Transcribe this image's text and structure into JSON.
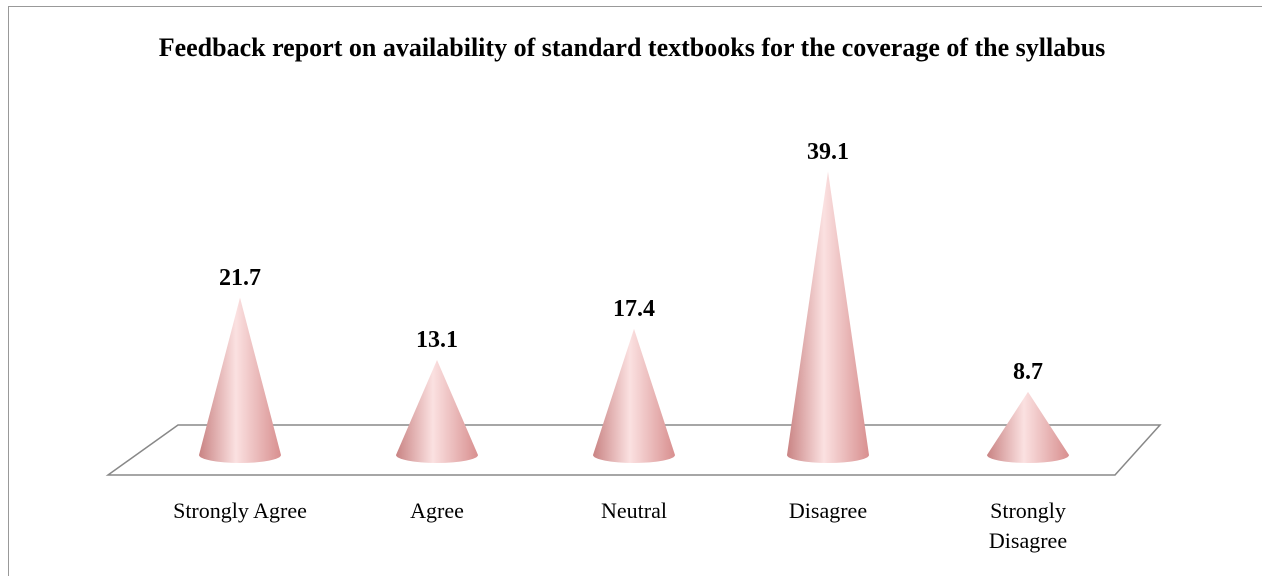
{
  "chart_data": {
    "type": "cone",
    "title": "Feedback report on availability of standard textbooks for the coverage of the syllabus",
    "categories": [
      "Strongly Agree",
      "Agree",
      "Neutral",
      "Disagree",
      "Strongly Disagree"
    ],
    "values": [
      21.7,
      13.1,
      17.4,
      39.1,
      8.7
    ],
    "color": "#e9a3a3"
  }
}
